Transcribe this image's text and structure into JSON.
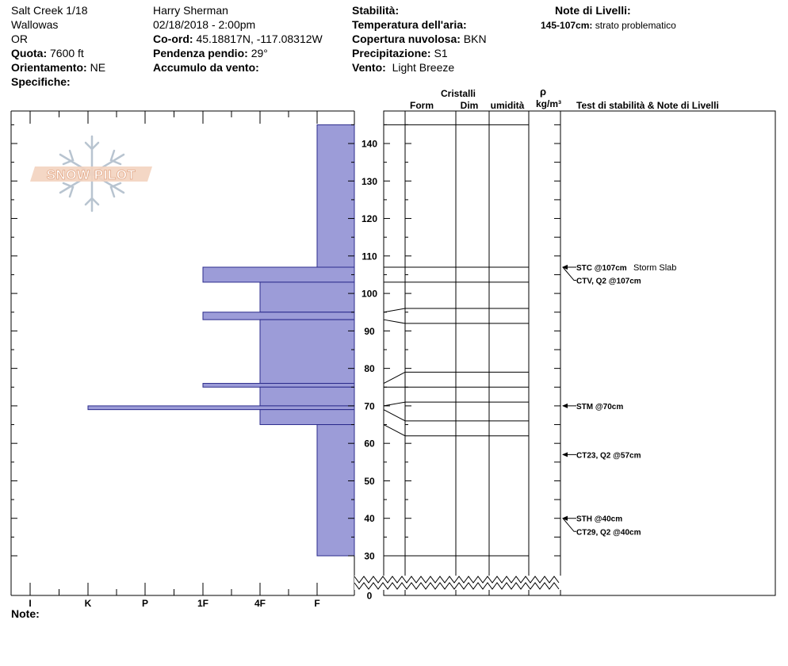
{
  "header": {
    "col1": [
      "Salt Creek 1/18",
      "Wallowas",
      "OR"
    ],
    "quota_label": "Quota:",
    "quota_value": "7600 ft",
    "orient_label": "Orientamento:",
    "orient_value": "NE",
    "spec_label": "Specifiche:",
    "observer": "Harry Sherman",
    "datetime": "02/18/2018 - 2:00pm",
    "coord_label": "Co-ord:",
    "coord_value": "45.18817N, -117.08312W",
    "slope_label": "Pendenza pendio:",
    "slope_value": "29°",
    "wind_load_label": "Accumulo da vento:",
    "stability_label": "Stabilità:",
    "air_temp_label": "Temperatura dell'aria:",
    "cloud_label": "Copertura nuvolosa:",
    "cloud_value": "BKN",
    "precip_label": "Precipitazione:",
    "precip_value": "S1",
    "wind_label": "Vento:",
    "wind_value": "Light Breeze",
    "layer_notes_title": "Note di Livelli:",
    "layer_note_depth": "145-107cm:",
    "layer_note_text": "strato problematico"
  },
  "logo_text": "SNOW PILOT",
  "column_headers": {
    "cristalli": "Cristalli",
    "form": "Form",
    "dim": "Dim",
    "umidita": "umidità",
    "rho": "ρ",
    "density_unit": "kg/m³",
    "tests": "Test di stabilità & Note di Livelli"
  },
  "footer_note": "Note:",
  "chart_data": {
    "type": "bar",
    "orientation": "horizontal",
    "yaxis": {
      "ticks": [
        0,
        30,
        40,
        50,
        60,
        70,
        80,
        90,
        100,
        110,
        120,
        130,
        140
      ],
      "range": [
        0,
        148
      ],
      "break_between": [
        0,
        30
      ]
    },
    "hardness_scale": [
      "I",
      "K",
      "P",
      "1F",
      "4F",
      "F"
    ],
    "hardness_profile": [
      {
        "top": 145,
        "bottom": 107,
        "hardness": "F"
      },
      {
        "top": 107,
        "bottom": 103,
        "hardness": "1F"
      },
      {
        "top": 103,
        "bottom": 95,
        "hardness": "4F"
      },
      {
        "top": 95,
        "bottom": 93,
        "hardness": "1F"
      },
      {
        "top": 93,
        "bottom": 76,
        "hardness": "4F"
      },
      {
        "top": 76,
        "bottom": 75,
        "hardness": "1F"
      },
      {
        "top": 75,
        "bottom": 70,
        "hardness": "4F"
      },
      {
        "top": 70,
        "bottom": 69,
        "hardness": "K"
      },
      {
        "top": 69,
        "bottom": 65,
        "hardness": "4F"
      },
      {
        "top": 65,
        "bottom": 30,
        "hardness": "F"
      }
    ],
    "layer_boundaries": [
      {
        "left": 145,
        "right": 145
      },
      {
        "left": 107,
        "right": 107
      },
      {
        "left": 103,
        "right": 103
      },
      {
        "left": 95,
        "right": 96
      },
      {
        "left": 93,
        "right": 92
      },
      {
        "left": 76,
        "right": 79
      },
      {
        "left": 75,
        "right": 75
      },
      {
        "left": 70,
        "right": 71
      },
      {
        "left": 69,
        "right": 66
      },
      {
        "left": 65,
        "right": 62
      },
      {
        "left": 30,
        "right": 30
      }
    ],
    "tests": [
      {
        "depth": 107,
        "label": "STC @107cm",
        "note": "Storm Slab",
        "label_y": 107
      },
      {
        "depth": 107,
        "label": "CTV, Q2 @107cm",
        "note": "",
        "label_y": 103.5
      },
      {
        "depth": 70,
        "label": "STM @70cm",
        "note": "",
        "label_y": 70
      },
      {
        "depth": 57,
        "label": "CT23, Q2 @57cm",
        "note": "",
        "label_y": 57
      },
      {
        "depth": 40,
        "label": "STH @40cm",
        "note": "",
        "label_y": 40
      },
      {
        "depth": 40,
        "label": "CT29, Q2 @40cm",
        "note": "",
        "label_y": 36.5
      }
    ],
    "colors": {
      "bar_fill": "#9c9cd8",
      "bar_stroke": "#2b2b8c"
    }
  }
}
